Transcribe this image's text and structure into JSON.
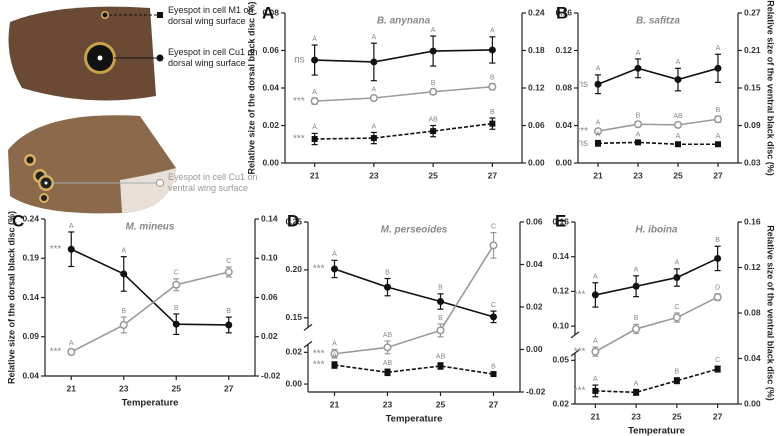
{
  "wing_labels": [
    "Eyespot in cell M1 on dorsal wing surface",
    "Eyespot in cell Cu1 on dorsal wing surface",
    "Eyespot in cell Cu1 on ventral wing surface"
  ],
  "chart_data": [
    {
      "type": "line",
      "panel_label": "A",
      "title": "B. anynana",
      "ylabel": "Relative size of the dorsal black disc (%)",
      "categories": [
        "21",
        "23",
        "25",
        "27"
      ],
      "ylim": [
        0,
        0.08
      ],
      "yticks": [
        {
          "value": 0,
          "label": "0.00"
        },
        0.02,
        0.04,
        0.06,
        0.08
      ],
      "y2lim": [
        0,
        0.24
      ],
      "y2ticks": [
        {
          "value": 0,
          "label": "0.00"
        },
        0.06,
        0.12,
        0.18,
        0.24
      ],
      "series": [
        {
          "axis": "y",
          "color": "#111111",
          "style": "solid",
          "marker": "filled-circle",
          "values": [
            0.0549,
            0.0539,
            0.0597,
            0.0603
          ],
          "errors": [
            0.008,
            0.01,
            0.008,
            0.007
          ],
          "point_labels": [
            "A",
            "A",
            "A",
            "A"
          ],
          "significance": "ns"
        },
        {
          "axis": "y2",
          "color": "#999999",
          "style": "solid",
          "marker": "open-circle",
          "values": [
            0.099,
            0.104,
            0.114,
            0.122
          ],
          "errors": [
            0.005,
            0.004,
            0.004,
            0.005
          ],
          "point_labels": [
            "A",
            "A",
            "B",
            "B"
          ],
          "significance": "***"
        },
        {
          "axis": "y",
          "color": "#111111",
          "style": "dashed",
          "marker": "filled-square",
          "values": [
            0.0128,
            0.0133,
            0.017,
            0.021
          ],
          "errors": [
            0.003,
            0.003,
            0.003,
            0.003
          ],
          "point_labels": [
            "A",
            "A",
            "AB",
            "B"
          ],
          "significance": "***"
        }
      ]
    },
    {
      "type": "line",
      "panel_label": "B",
      "title": "B. safitza",
      "y2label": "Relative size of the ventral black disc (%)",
      "categories": [
        "21",
        "23",
        "25",
        "27"
      ],
      "ylim": [
        0,
        0.16
      ],
      "yticks": [
        {
          "value": 0,
          "label": "0.00"
        },
        0.04,
        0.08,
        0.12,
        0.16
      ],
      "y2lim": [
        0.03,
        0.27
      ],
      "y2ticks": [
        0.03,
        0.09,
        0.15,
        0.21,
        0.27
      ],
      "series": [
        {
          "axis": "y",
          "color": "#111111",
          "style": "solid",
          "marker": "filled-circle",
          "values": [
            0.084,
            0.101,
            0.089,
            0.101
          ],
          "errors": [
            0.01,
            0.01,
            0.012,
            0.015
          ],
          "point_labels": [
            "A",
            "A",
            "A",
            "A"
          ],
          "significance": "ns"
        },
        {
          "axis": "y2",
          "color": "#999999",
          "style": "solid",
          "marker": "open-circle",
          "values": [
            0.081,
            0.092,
            0.091,
            0.1
          ],
          "errors": [
            0.004,
            0.004,
            0.004,
            0.005
          ],
          "point_labels": [
            "A",
            "B",
            "AB",
            "B"
          ],
          "significance": "***"
        },
        {
          "axis": "y",
          "color": "#111111",
          "style": "dashed",
          "marker": "filled-square",
          "values": [
            0.021,
            0.022,
            0.02,
            0.02
          ],
          "errors": [
            0.003,
            0.002,
            0.002,
            0.002
          ],
          "point_labels": [
            "A",
            "A",
            "A",
            "A"
          ],
          "significance": "ns"
        }
      ]
    },
    {
      "type": "line",
      "panel_label": "C",
      "title": "M. mineus",
      "ylabel": "Relative size of the dorsal black disc (%)",
      "xlabel": "Temperature",
      "categories": [
        "21",
        "23",
        "25",
        "27"
      ],
      "ylim": [
        0.04,
        0.24
      ],
      "yticks": [
        0.04,
        0.09,
        0.14,
        0.19,
        0.24
      ],
      "y2lim": [
        -0.02,
        0.14
      ],
      "y2ticks": [
        -0.02,
        0.02,
        0.06,
        {
          "value": 0.1,
          "label": "0.10"
        },
        0.14
      ],
      "series": [
        {
          "axis": "y",
          "color": "#111111",
          "style": "solid",
          "marker": "filled-circle",
          "values": [
            0.2015,
            0.17,
            0.106,
            0.105
          ],
          "errors": [
            0.022,
            0.022,
            0.013,
            0.01
          ],
          "point_labels": [
            "A",
            "A",
            "B",
            "B"
          ],
          "significance": "***"
        },
        {
          "axis": "y2",
          "color": "#999999",
          "style": "solid",
          "marker": "open-circle",
          "values": [
            0.0045,
            0.032,
            0.073,
            0.086
          ],
          "errors": [
            0.003,
            0.008,
            0.006,
            0.005
          ],
          "point_labels": [
            "A",
            "B",
            "C",
            "C"
          ],
          "significance": "***"
        }
      ]
    },
    {
      "type": "line",
      "panel_label": "D",
      "title": "M. perseoides",
      "xlabel": "Temperature",
      "categories": [
        "21",
        "23",
        "25",
        "27"
      ],
      "ylim": [
        0.14,
        0.25
      ],
      "yticks": [
        0.15,
        {
          "value": 0.2,
          "label": "0.20"
        },
        0.25
      ],
      "ylim_lower": [
        -0.005,
        0.025
      ],
      "yticks_lower": [
        {
          "value": 0,
          "label": "0.00"
        },
        0.02
      ],
      "y2lim": [
        -0.02,
        0.06
      ],
      "y2ticks": [
        -0.02,
        {
          "value": 0,
          "label": "0.00"
        },
        0.02,
        0.04,
        0.06
      ],
      "series": [
        {
          "axis": "y",
          "color": "#111111",
          "style": "solid",
          "marker": "filled-circle",
          "values": [
            0.201,
            0.182,
            0.167,
            0.151
          ],
          "errors": [
            0.009,
            0.009,
            0.008,
            0.006
          ],
          "point_labels": [
            "A",
            "B",
            "B",
            "C"
          ],
          "significance": "***"
        },
        {
          "axis": "y2",
          "color": "#999999",
          "style": "solid",
          "marker": "open-circle",
          "values": [
            -0.002,
            0.001,
            0.009,
            0.049
          ],
          "errors": [
            0.002,
            0.003,
            0.003,
            0.006
          ],
          "point_labels": [
            "A",
            "AB",
            "B",
            "C"
          ],
          "significance": "***"
        },
        {
          "axis": "y_lower",
          "color": "#111111",
          "style": "dashed",
          "marker": "filled-square",
          "values": [
            0.012,
            0.0074,
            0.0114,
            0.0063
          ],
          "errors": [
            0.002,
            0.002,
            0.002,
            0.001
          ],
          "point_labels": [
            "A",
            "AB",
            "AB",
            "B"
          ],
          "significance": "***"
        }
      ]
    },
    {
      "type": "line",
      "panel_label": "E",
      "title": "H. iboina",
      "y2label": "Relative size of the ventral black disc (%)",
      "xlabel": "Temperature",
      "categories": [
        "21",
        "23",
        "25",
        "27"
      ],
      "ylim": [
        0.095,
        0.16
      ],
      "yticks": [
        {
          "value": 0.1,
          "label": "0.10"
        },
        0.12,
        0.14,
        0.16
      ],
      "ylim_lower": [
        0.02,
        0.055
      ],
      "yticks_lower": [
        0.02,
        0.05
      ],
      "y2lim": [
        0,
        0.16
      ],
      "y2ticks": [
        {
          "value": 0,
          "label": "0.00"
        },
        0.04,
        0.08,
        0.12,
        0.16
      ],
      "series": [
        {
          "axis": "y",
          "color": "#111111",
          "style": "solid",
          "marker": "filled-circle",
          "values": [
            0.118,
            0.123,
            0.128,
            0.139
          ],
          "errors": [
            0.007,
            0.006,
            0.005,
            0.007
          ],
          "point_labels": [
            "A",
            "A",
            "A",
            "B"
          ],
          "significance": "***"
        },
        {
          "axis": "y2",
          "color": "#999999",
          "style": "solid",
          "marker": "open-circle",
          "values": [
            0.046,
            0.066,
            0.076,
            0.094
          ],
          "errors": [
            0.004,
            0.004,
            0.004,
            0.003
          ],
          "point_labels": [
            "A",
            "B",
            "C",
            "D"
          ],
          "significance": "***"
        },
        {
          "axis": "y_lower",
          "color": "#111111",
          "style": "dashed",
          "marker": "filled-square",
          "values": [
            0.029,
            0.028,
            0.036,
            0.044
          ],
          "errors": [
            0.004,
            0.002,
            0.002,
            0.002
          ],
          "point_labels": [
            "A",
            "A",
            "B",
            "C"
          ],
          "significance": "***"
        }
      ]
    }
  ]
}
